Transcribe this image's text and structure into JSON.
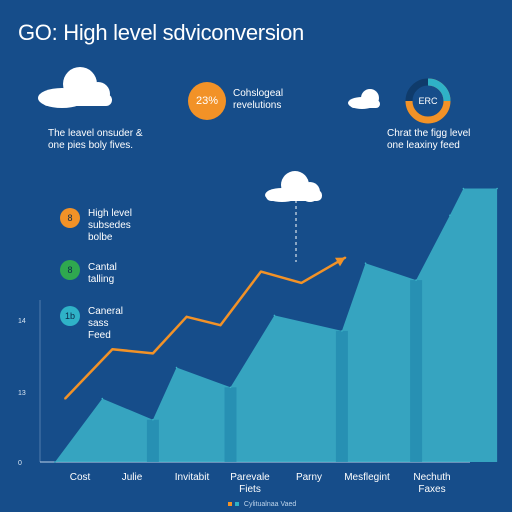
{
  "title": "GO: High level sdviconversion",
  "colors": {
    "background": "#164d8a",
    "accent_orange": "#f29227",
    "accent_green": "#2fa84f",
    "accent_teal": "#2fb2c7",
    "area_main": "#3cb4c9",
    "area_dark": "#1b7fa8",
    "cloud": "#ffffff"
  },
  "top_left": {
    "icon": "cloud-icon",
    "caption_lines": [
      "The leavel onsuder &",
      "one pies boly fives."
    ]
  },
  "top_middle": {
    "badge_text": "23%",
    "caption_lines": [
      "Cohslogeal",
      "revelutions"
    ]
  },
  "top_right": {
    "icon": "cloud-icon",
    "ring_text": "ERC",
    "caption_lines": [
      "Chrat the figg level",
      "one leaxiny feed"
    ]
  },
  "legend": [
    {
      "badge": "8",
      "color": "#f29227",
      "lines": [
        "High level",
        "subsedes",
        "bolbe"
      ]
    },
    {
      "badge": "8",
      "color": "#2fa84f",
      "lines": [
        "Cantal",
        "talling"
      ]
    },
    {
      "badge": "1b",
      "color": "#2fb2c7",
      "lines": [
        "Caneral",
        "sass",
        "Feed"
      ]
    }
  ],
  "footer_note": "Cylitualnaa Vaed",
  "chart_data": {
    "type": "area",
    "categories": [
      "Cost",
      "Julie",
      "Invitabit",
      "Parevale Fiets",
      "Parny",
      "Mesflegint",
      "Nechuth Faxes"
    ],
    "yticks": [
      "0",
      "13",
      "14"
    ],
    "ylim": [
      0,
      20
    ],
    "series": [
      {
        "type": "area",
        "x": [
          0,
          0.7,
          1.45,
          1.8,
          2.6,
          3.25,
          4.25,
          4.6,
          5.35,
          5.85,
          6.05,
          6.55
        ],
        "values": [
          0,
          4.5,
          3.0,
          6.7,
          5.3,
          10.4,
          9.3,
          14.1,
          12.9,
          17.5,
          19.4,
          19.4
        ]
      },
      {
        "type": "line",
        "x": [
          0.15,
          0.85,
          1.45,
          1.95,
          2.45,
          3.05,
          3.65,
          4.3
        ],
        "values": [
          4.5,
          8.0,
          7.7,
          10.3,
          9.7,
          13.5,
          12.7,
          14.5
        ]
      }
    ],
    "grid": false
  }
}
